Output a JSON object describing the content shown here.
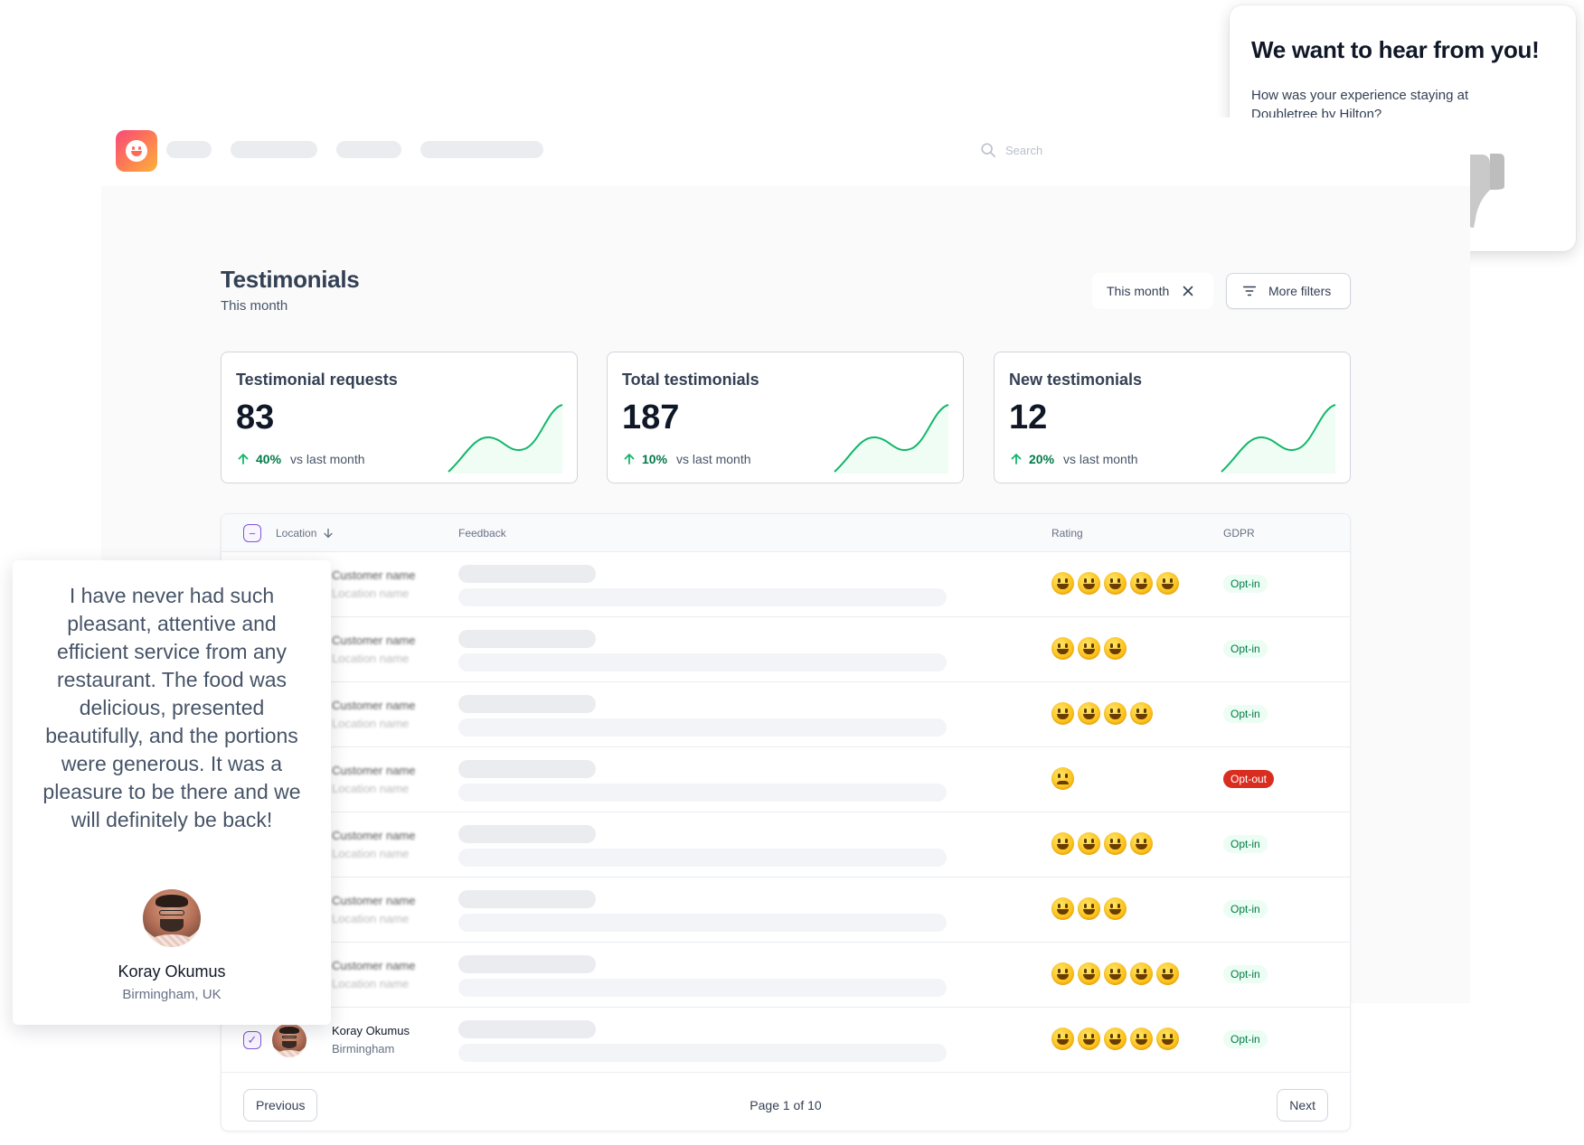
{
  "header": {
    "search_placeholder": "Search"
  },
  "page": {
    "title": "Testimonials",
    "subtitle": "This month"
  },
  "filters": {
    "active_filter": "This month",
    "more_filters": "More filters"
  },
  "stats": [
    {
      "label": "Testimonial requests",
      "value": "83",
      "change": "40%",
      "compare": "vs last month"
    },
    {
      "label": "Total testimonials",
      "value": "187",
      "change": "10%",
      "compare": "vs last month"
    },
    {
      "label": "New testimonials",
      "value": "12",
      "change": "20%",
      "compare": "vs last month"
    }
  ],
  "table": {
    "columns": {
      "location": "Location",
      "feedback": "Feedback",
      "rating": "Rating",
      "gdpr": "GDPR"
    },
    "rows": [
      {
        "name": "Customer name",
        "location": "Location name",
        "rating": 5,
        "gdpr": "Opt-in"
      },
      {
        "name": "Customer name",
        "location": "Location name",
        "rating": 3,
        "gdpr": "Opt-in"
      },
      {
        "name": "Customer name",
        "location": "Location name",
        "rating": 4,
        "gdpr": "Opt-in"
      },
      {
        "name": "Customer name",
        "location": "Location name",
        "rating": 1,
        "gdpr": "Opt-out"
      },
      {
        "name": "Customer name",
        "location": "Location name",
        "rating": 4,
        "gdpr": "Opt-in"
      },
      {
        "name": "Customer name",
        "location": "Location name",
        "rating": 3,
        "gdpr": "Opt-in"
      },
      {
        "name": "Customer name",
        "location": "Location name",
        "rating": 5,
        "gdpr": "Opt-in"
      },
      {
        "name": "Koray Okumus",
        "location": "Birmingham",
        "rating": 5,
        "gdpr": "Opt-in"
      }
    ]
  },
  "pagination": {
    "previous": "Previous",
    "info": "Page 1 of 10",
    "next": "Next"
  },
  "survey": {
    "title": "We want to hear from you!",
    "question": "How was your experience staying at Doubletree by Hilton?"
  },
  "testimonial": {
    "quote": "I have never had such pleasant, attentive and efficient service from any restaurant. The food was delicious, presented beautifully, and the portions were generous. It was a pleasure to be there and we will definitely be back!",
    "name": "Koray Okumus",
    "location": "Birmingham, UK"
  },
  "colors": {
    "accent": "#7f56d9",
    "success": "#027a48",
    "danger": "#d92d20",
    "spark": "#12b76a"
  },
  "icons": [
    "search-icon",
    "close-icon",
    "filter-lines-icon",
    "arrow-up-icon",
    "arrow-down-icon",
    "thumbs-up-icon",
    "thumbs-down-icon"
  ]
}
